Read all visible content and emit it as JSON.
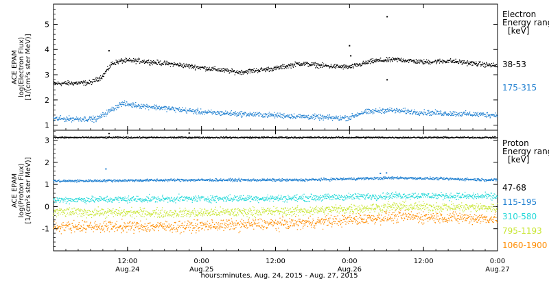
{
  "chart_data": [
    {
      "type": "scatter",
      "panel": "electron",
      "ylabel": [
        "ACE EPAM",
        "log(Electron Flux)",
        "[1/(cm²s ster MeV)]"
      ],
      "ylim": [
        0.8,
        5.8
      ],
      "yticks": [
        1,
        2,
        3,
        4,
        5
      ],
      "legend_title": [
        "Electron",
        "Energy ranges",
        "[keV]"
      ],
      "series": [
        {
          "name": "38-53",
          "color": "#000000",
          "profile": [
            [
              0,
              2.65
            ],
            [
              6,
              2.68
            ],
            [
              8,
              2.95
            ],
            [
              9.5,
              3.45
            ],
            [
              11,
              3.55
            ],
            [
              14,
              3.55
            ],
            [
              20,
              3.4
            ],
            [
              30,
              3.1
            ],
            [
              36,
              3.25
            ],
            [
              40,
              3.45
            ],
            [
              44,
              3.35
            ],
            [
              48,
              3.3
            ],
            [
              52,
              3.55
            ],
            [
              56,
              3.6
            ],
            [
              60,
              3.5
            ],
            [
              64,
              3.55
            ],
            [
              70,
              3.4
            ],
            [
              72,
              3.35
            ]
          ],
          "spread": 0.08,
          "outliers": [
            [
              9.0,
              3.95
            ],
            [
              48.0,
              4.15
            ],
            [
              48.2,
              3.75
            ],
            [
              54.1,
              5.3
            ],
            [
              54.1,
              2.8
            ]
          ]
        },
        {
          "name": "175-315",
          "color": "#1f7fd0",
          "profile": [
            [
              0,
              1.25
            ],
            [
              7,
              1.25
            ],
            [
              9,
              1.55
            ],
            [
              11,
              1.85
            ],
            [
              15,
              1.75
            ],
            [
              25,
              1.5
            ],
            [
              40,
              1.35
            ],
            [
              46,
              1.28
            ],
            [
              48,
              1.3
            ],
            [
              50,
              1.5
            ],
            [
              54,
              1.6
            ],
            [
              60,
              1.5
            ],
            [
              66,
              1.45
            ],
            [
              72,
              1.4
            ]
          ],
          "spread": 0.09,
          "outliers": []
        }
      ]
    },
    {
      "type": "scatter",
      "panel": "proton",
      "ylabel": [
        "ACE EPAM",
        "log(Proton Flux)",
        "[1/(cm²s ster MeV)]"
      ],
      "ylim": [
        -2.0,
        3.45
      ],
      "yticks": [
        -1,
        0,
        1,
        2,
        3
      ],
      "legend_title": [
        "Proton",
        "Energy ranges",
        "[keV]"
      ],
      "series": [
        {
          "name": "47-68",
          "color": "#000000",
          "profile": [
            [
              0,
              3.12
            ],
            [
              20,
              3.12
            ],
            [
              40,
              3.12
            ],
            [
              72,
              3.12
            ]
          ],
          "spread": 0.03,
          "outliers": [
            [
              22,
              3.32
            ],
            [
              9.0,
              3.3
            ]
          ]
        },
        {
          "name": "115-195",
          "color": "#1f7fd0",
          "profile": [
            [
              0,
              1.15
            ],
            [
              20,
              1.2
            ],
            [
              40,
              1.2
            ],
            [
              56,
              1.3
            ],
            [
              72,
              1.2
            ]
          ],
          "spread": 0.05,
          "outliers": [
            [
              8.5,
              1.7
            ],
            [
              53,
              1.5
            ],
            [
              54,
              1.52
            ]
          ]
        },
        {
          "name": "310-580",
          "color": "#22d8d8",
          "profile": [
            [
              0,
              0.3
            ],
            [
              20,
              0.35
            ],
            [
              40,
              0.38
            ],
            [
              56,
              0.5
            ],
            [
              72,
              0.45
            ]
          ],
          "spread": 0.13,
          "outliers": []
        },
        {
          "name": "795-1193",
          "color": "#c8e632",
          "profile": [
            [
              0,
              -0.25
            ],
            [
              20,
              -0.3
            ],
            [
              40,
              -0.2
            ],
            [
              56,
              0.0
            ],
            [
              72,
              -0.05
            ]
          ],
          "spread": 0.18,
          "outliers": []
        },
        {
          "name": "1060-1900",
          "color": "#ff8c00",
          "profile": [
            [
              0,
              -0.9
            ],
            [
              20,
              -0.9
            ],
            [
              40,
              -0.75
            ],
            [
              56,
              -0.45
            ],
            [
              72,
              -0.55
            ]
          ],
          "spread": 0.22,
          "outliers": []
        }
      ]
    }
  ],
  "x_axis": {
    "start": "2015-08-24T00:00",
    "end": "2015-08-27T00:00",
    "data_end_hours": 72,
    "ticks": [
      {
        "time": "12:00",
        "date": "Aug.24",
        "hours": 12
      },
      {
        "time": "0:00",
        "date": "Aug.25",
        "hours": 24
      },
      {
        "time": "12:00",
        "date": "",
        "hours": 36
      },
      {
        "time": "0:00",
        "date": "Aug.26",
        "hours": 48
      },
      {
        "time": "12:00",
        "date": "",
        "hours": 60
      },
      {
        "time": "0:00",
        "date": "Aug.27",
        "hours": 72
      }
    ],
    "title": "hours:minutes, Aug. 24, 2015 - Aug. 27, 2015"
  }
}
